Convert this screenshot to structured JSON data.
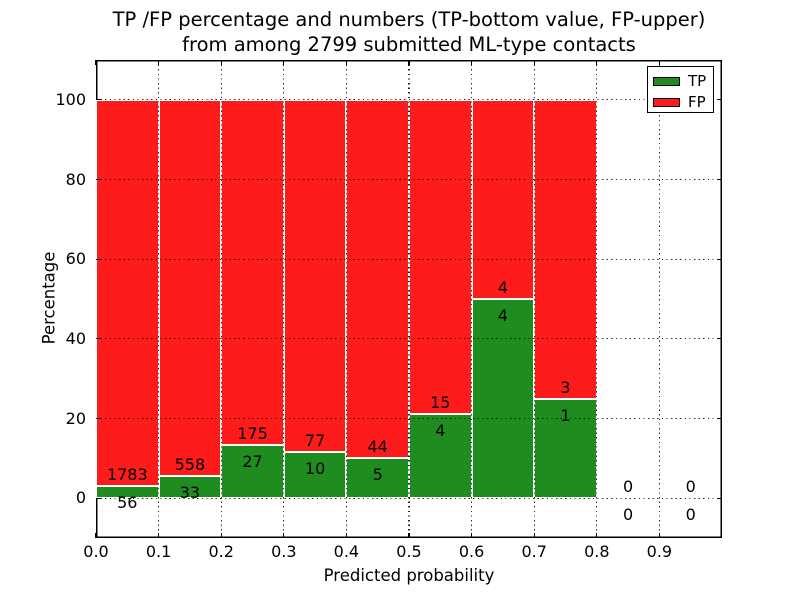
{
  "title": {
    "line1": "TP /FP percentage and numbers (TP-bottom value, FP-upper)",
    "line2": "from among 2799 submitted ML-type contacts"
  },
  "axes": {
    "xlabel": "Predicted probability",
    "ylabel": "Percentage",
    "x_tick_labels": [
      "0.0",
      "0.1",
      "0.2",
      "0.3",
      "0.4",
      "0.5",
      "0.6",
      "0.7",
      "0.8",
      "0.9"
    ],
    "y_tick_labels": [
      "0",
      "20",
      "40",
      "60",
      "80",
      "100"
    ],
    "y_tick_values": [
      0,
      20,
      40,
      60,
      80,
      100
    ]
  },
  "legend": {
    "items": [
      {
        "label": "TP",
        "color": "#1e8c1e"
      },
      {
        "label": "FP",
        "color": "#fd1b1b"
      }
    ]
  },
  "colors": {
    "tp": "#1e8c1e",
    "fp": "#fd1b1b",
    "axis": "#000000",
    "background": "#ffffff"
  },
  "chart_data": {
    "type": "bar",
    "stacked": true,
    "normalized_to_percent": true,
    "title": "TP /FP percentage and numbers (TP-bottom value, FP-upper) from among 2799 submitted ML-type contacts",
    "xlabel": "Predicted probability",
    "ylabel": "Percentage",
    "total_contacts": 2799,
    "bin_width": 0.1,
    "categories": [
      "0.0-0.1",
      "0.1-0.2",
      "0.2-0.3",
      "0.3-0.4",
      "0.4-0.5",
      "0.5-0.6",
      "0.6-0.7",
      "0.7-0.8",
      "0.8-0.9",
      "0.9-1.0"
    ],
    "series": [
      {
        "name": "TP",
        "color": "#1e8c1e",
        "counts": [
          56,
          33,
          27,
          10,
          5,
          4,
          4,
          1,
          0,
          0
        ],
        "percent": [
          3.045,
          5.584,
          13.366,
          11.494,
          10.204,
          21.053,
          50.0,
          25.0,
          0,
          0
        ]
      },
      {
        "name": "FP",
        "color": "#fd1b1b",
        "counts": [
          1783,
          558,
          175,
          77,
          44,
          15,
          4,
          3,
          0,
          0
        ],
        "percent": [
          96.955,
          94.416,
          86.634,
          88.506,
          89.796,
          78.947,
          50.0,
          75.0,
          0,
          0
        ]
      }
    ],
    "xlim": [
      0.0,
      1.0
    ],
    "ylim": [
      -10,
      110
    ],
    "grid": "dotted, drawn above bars",
    "legend_position": "upper right"
  }
}
